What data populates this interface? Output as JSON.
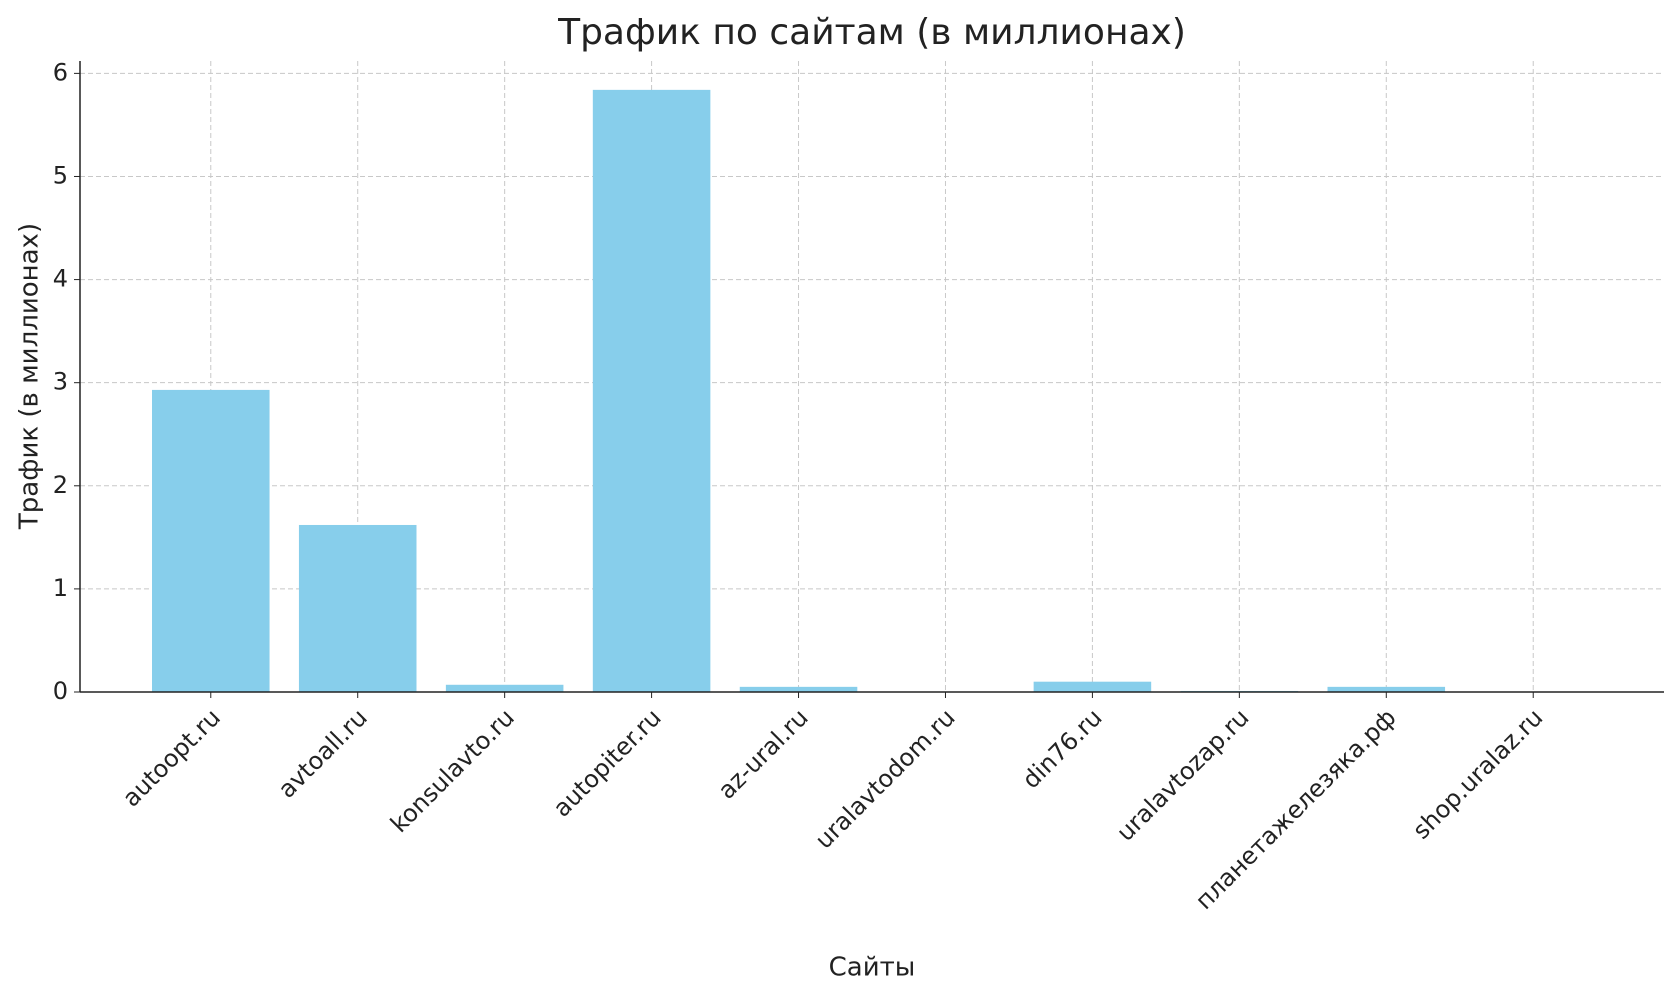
{
  "chart_data": {
    "type": "bar",
    "title": "Трафик по сайтам (в миллионах)",
    "x_label": "Сайты",
    "y_label": "Трафик (в миллионах)",
    "categories": [
      "autoopt.ru",
      "avtoall.ru",
      "konsulavto.ru",
      "autopiter.ru",
      "az-ural.ru",
      "uralavtodom.ru",
      "din76.ru",
      "uralavtozap.ru",
      "планетажелезяка.рф",
      "shop.uralaz.ru"
    ],
    "values": [
      2.93,
      1.62,
      0.07,
      5.84,
      0.05,
      0,
      0.1,
      0.01,
      0.05,
      0
    ],
    "color": "#87ceeb",
    "ylim": [
      0,
      6.12
    ],
    "yticks": [
      0,
      1,
      2,
      3,
      4,
      5,
      6
    ],
    "grid": true
  }
}
